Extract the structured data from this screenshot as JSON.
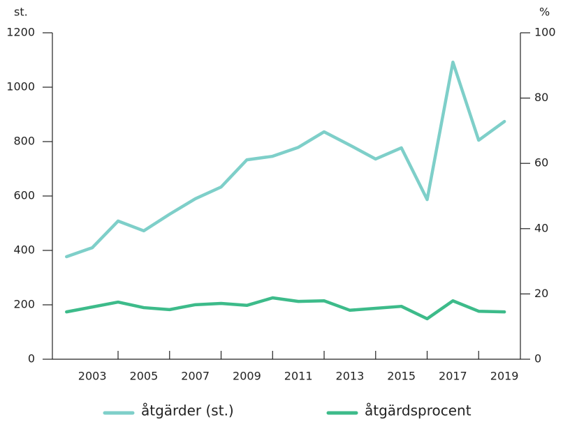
{
  "chart_data": {
    "type": "line",
    "y_label": "st.",
    "y2_label": "%",
    "x": [
      2002,
      2003,
      2004,
      2005,
      2006,
      2007,
      2008,
      2009,
      2010,
      2011,
      2012,
      2013,
      2014,
      2015,
      2016,
      2017,
      2018,
      2019
    ],
    "xlim": [
      2001.45,
      2019.62
    ],
    "xticks": [
      2003,
      2005,
      2007,
      2009,
      2011,
      2013,
      2015,
      2017,
      2019
    ],
    "ylim": [
      0,
      1200
    ],
    "yticks": [
      0,
      200,
      400,
      600,
      800,
      1000,
      1200
    ],
    "y2lim": [
      0,
      100
    ],
    "y2ticks": [
      0,
      20,
      40,
      60,
      80,
      100
    ],
    "series": [
      {
        "name": "åtgärder (st.)",
        "color": "#7ecfc9",
        "values": [
          377,
          410,
          508,
          472,
          533,
          590,
          633,
          733,
          746,
          779,
          836,
          787,
          736,
          777,
          587,
          1092,
          805,
          874
        ]
      },
      {
        "name": "åtgärdsprocent",
        "color": "#3dbb8a",
        "axis": "y2",
        "values": [
          14.5,
          16.0,
          17.5,
          15.8,
          15.2,
          16.7,
          17.1,
          16.5,
          18.8,
          17.7,
          17.9,
          15.0,
          15.6,
          16.2,
          12.4,
          17.9,
          14.7,
          14.5
        ]
      }
    ]
  }
}
